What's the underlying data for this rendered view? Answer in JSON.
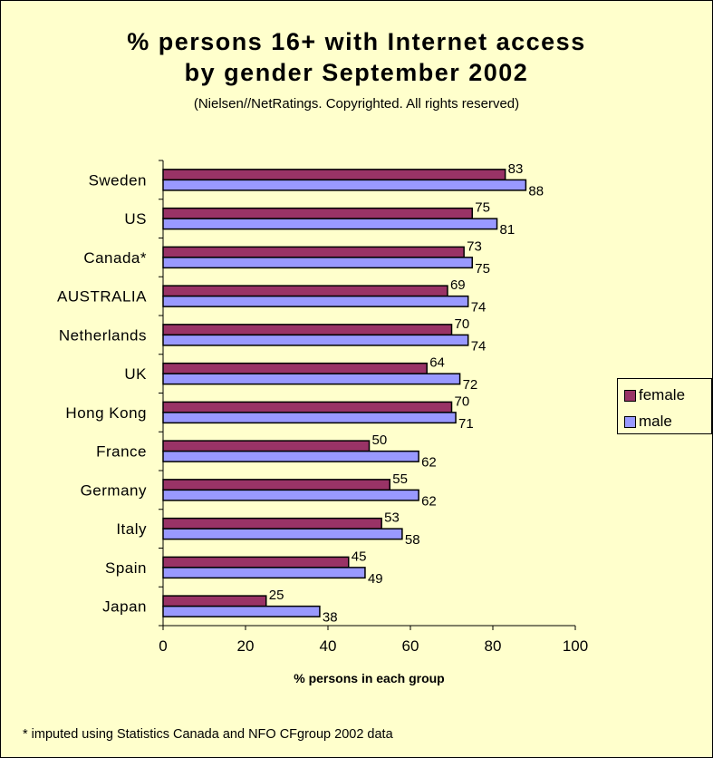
{
  "chart_data": {
    "type": "bar",
    "orientation": "horizontal",
    "title": "% persons 16+ with Internet access",
    "title_line2": "by gender  September 2002",
    "subtitle": "(Nielsen//NetRatings. Copyrighted. All rights reserved)",
    "xlabel": "% persons in each group",
    "ylabel": "",
    "xlim": [
      0,
      100
    ],
    "xticks": [
      0,
      20,
      40,
      60,
      80,
      100
    ],
    "categories": [
      "Sweden",
      "US",
      "Canada*",
      "AUSTRALIA",
      "Netherlands",
      "UK",
      "Hong Kong",
      "France",
      "Germany",
      "Italy",
      "Spain",
      "Japan"
    ],
    "series": [
      {
        "name": "female",
        "color": "#993366",
        "values": [
          83,
          75,
          73,
          69,
          70,
          64,
          70,
          50,
          55,
          53,
          45,
          25
        ]
      },
      {
        "name": "male",
        "color": "#9999ff",
        "values": [
          88,
          81,
          75,
          74,
          74,
          72,
          71,
          62,
          62,
          58,
          49,
          38
        ]
      }
    ],
    "legend_position": "right",
    "grid": false,
    "footnote": "* imputed using Statistics Canada and NFO CFgroup 2002 data"
  }
}
